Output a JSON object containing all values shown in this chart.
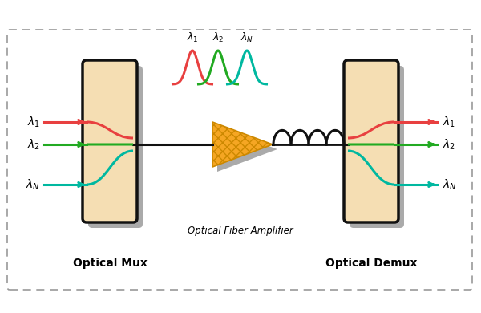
{
  "bg_color": "#ffffff",
  "border_color": "#999999",
  "mux_label": "Optical Mux",
  "demux_label": "Optical Demux",
  "amplifier_label": "Optical Fiber Amplifier",
  "colors": {
    "red": "#e84040",
    "green": "#22aa22",
    "teal": "#00b8a0",
    "orange_fill": "#f5a623",
    "orange_edge": "#cc8800",
    "box_fill": "#f5deb3",
    "box_border": "#111111",
    "gray_shadow": "#aaaaaa",
    "black": "#111111"
  },
  "figsize": [
    6.0,
    3.9
  ],
  "dpi": 100
}
